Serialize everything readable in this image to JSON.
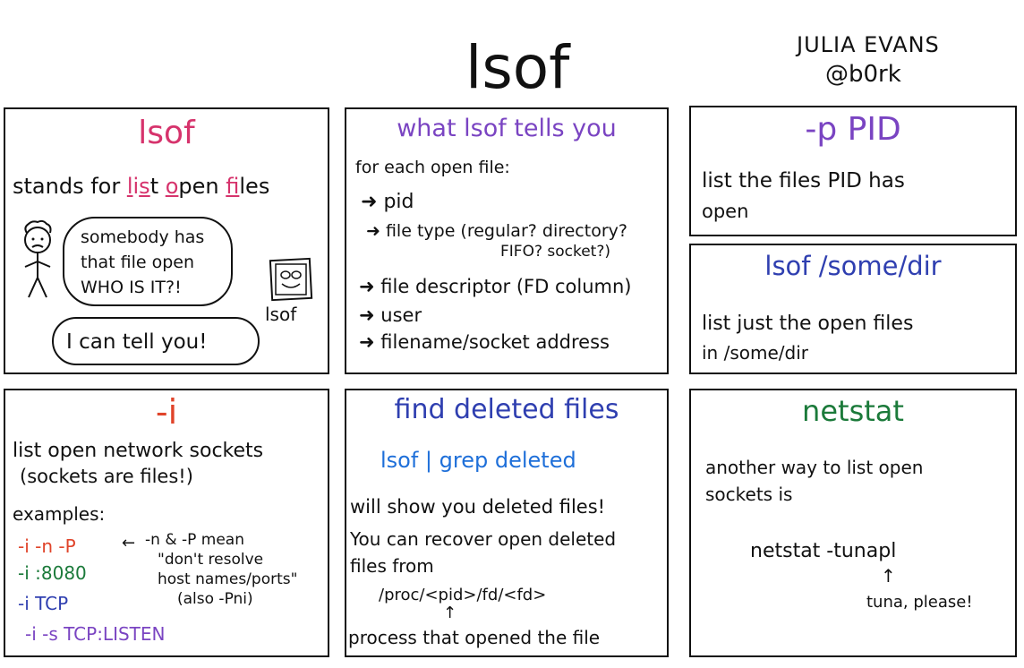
{
  "header": {
    "title": "lsof",
    "author_name": "JULIA EVANS",
    "author_handle": "@b0rk"
  },
  "panels": {
    "lsof": {
      "title": "lsof",
      "stands_prefix": "stands for ",
      "stands_l": "l",
      "stands_i": "i",
      "stands_s": "s",
      "stands_t": "t ",
      "stands_o": "o",
      "stands_pen": "pen ",
      "stands_f": "f",
      "stands_iles": "iles",
      "bubble_line1": "somebody has",
      "bubble_line2": "that file open",
      "bubble_line3": "WHO IS IT?!",
      "reply": "I can tell you!",
      "mascot_label": "lsof"
    },
    "tells": {
      "title": "what lsof tells you",
      "intro": "for each open file:",
      "items": [
        "pid",
        "file type (regular? directory?",
        "FIFO? socket?)",
        "file descriptor (FD column)",
        "user",
        "filename/socket address"
      ]
    },
    "pid": {
      "title": "-p PID",
      "line1": "list the files PID has",
      "line2": "open"
    },
    "dir": {
      "title": "lsof /some/dir",
      "line1": "list just the open files",
      "line2": "in /some/dir"
    },
    "net": {
      "title": "-i",
      "line1": "list open network sockets",
      "line2": "(sockets are files!)",
      "examples_label": "examples:",
      "examples": [
        "-i -n -P",
        "-i :8080",
        "-i TCP",
        "-i -s TCP:LISTEN"
      ],
      "note_line1": "-n & -P mean",
      "note_line2": "\"don't resolve",
      "note_line3": "host names/ports\"",
      "note_line4": "(also -Pni)"
    },
    "deleted": {
      "title": "find deleted files",
      "command": "lsof | grep deleted",
      "line1": "will show you deleted files!",
      "line2": "You can recover open deleted",
      "line3": "files from",
      "path": "/proc/<pid>/fd/<fd>",
      "caption": "process that opened the file"
    },
    "netstat": {
      "title": "netstat",
      "line1": "another way to list open",
      "line2": "sockets is",
      "command": "netstat -tunapl",
      "note": "tuna, please!"
    }
  },
  "colors": {
    "pink": "#d6336c",
    "purple": "#7a44c2",
    "blue": "#2f3fb0",
    "lightblue": "#1e6fd9",
    "red": "#e0442a",
    "green": "#1b7a3a",
    "ink": "#111111"
  }
}
